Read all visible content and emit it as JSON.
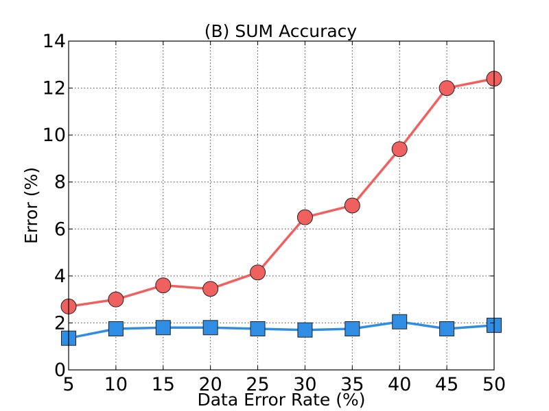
{
  "chart_data": {
    "type": "line",
    "title": "(B) SUM Accuracy",
    "xlabel": "Data Error Rate (%)",
    "ylabel": "Error (%)",
    "xlim": [
      5,
      50
    ],
    "ylim": [
      0,
      14
    ],
    "x_ticks": [
      "5",
      "10",
      "15",
      "20",
      "25",
      "30",
      "35",
      "40",
      "45",
      "50"
    ],
    "y_ticks": [
      "0",
      "2",
      "4",
      "6",
      "8",
      "10",
      "12",
      "14"
    ],
    "grid": true,
    "x": [
      5,
      10,
      15,
      20,
      25,
      30,
      35,
      40,
      45,
      50
    ],
    "series": [
      {
        "color": "#f0605e",
        "marker": "circle",
        "values": [
          2.7,
          3.0,
          3.6,
          3.45,
          4.15,
          6.5,
          7.0,
          9.4,
          12.0,
          12.4
        ]
      },
      {
        "color": "#2f8de4",
        "marker": "square",
        "values": [
          1.35,
          1.75,
          1.8,
          1.8,
          1.75,
          1.7,
          1.75,
          2.05,
          1.75,
          1.9
        ]
      }
    ]
  }
}
